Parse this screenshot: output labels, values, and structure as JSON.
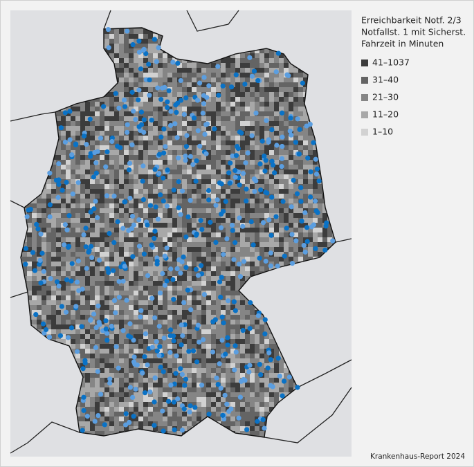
{
  "legend": {
    "title_lines": [
      "Erreichbarkeit Notf. 2/3",
      "Notfallst. 1 mit Sicherst.",
      "Fahrzeit in Minuten"
    ],
    "items": [
      {
        "label": "41–1037",
        "color": "#3c3c3c"
      },
      {
        "label": "31–40",
        "color": "#646464"
      },
      {
        "label": "21–30",
        "color": "#858585"
      },
      {
        "label": "11–20",
        "color": "#a8a8a8"
      },
      {
        "label": "1–10",
        "color": "#d2d2d2"
      }
    ]
  },
  "source": "Krankenhaus-Report 2024"
}
